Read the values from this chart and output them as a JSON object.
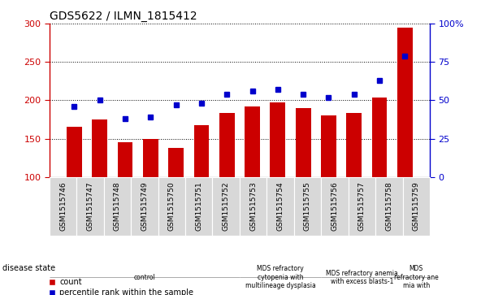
{
  "title": "GDS5622 / ILMN_1815412",
  "samples": [
    "GSM1515746",
    "GSM1515747",
    "GSM1515748",
    "GSM1515749",
    "GSM1515750",
    "GSM1515751",
    "GSM1515752",
    "GSM1515753",
    "GSM1515754",
    "GSM1515755",
    "GSM1515756",
    "GSM1515757",
    "GSM1515758",
    "GSM1515759"
  ],
  "counts": [
    165,
    175,
    145,
    150,
    138,
    168,
    183,
    192,
    197,
    190,
    180,
    183,
    204,
    295
  ],
  "percentile_ranks": [
    46,
    50,
    38,
    39,
    47,
    48,
    54,
    56,
    57,
    54,
    52,
    54,
    63,
    79
  ],
  "ylim_left": [
    100,
    300
  ],
  "ylim_right": [
    0,
    100
  ],
  "yticks_left": [
    100,
    150,
    200,
    250,
    300
  ],
  "yticks_right": [
    0,
    25,
    50,
    75,
    100
  ],
  "bar_color": "#cc0000",
  "dot_color": "#0000cc",
  "disease_groups": [
    {
      "label": "control",
      "start": 0,
      "end": 6,
      "color": "#ccffcc"
    },
    {
      "label": "MDS refractory\ncytopenia with\nmultilineage dysplasia",
      "start": 7,
      "end": 9,
      "color": "#ccffcc"
    },
    {
      "label": "MDS refractory anemia\nwith excess blasts-1",
      "start": 10,
      "end": 12,
      "color": "#ccffcc"
    },
    {
      "label": "MDS\nrefractory ane\nmia with",
      "start": 13,
      "end": 13,
      "color": "#ccffcc"
    }
  ],
  "legend_count_label": "count",
  "legend_pct_label": "percentile rank within the sample",
  "disease_state_label": "disease state"
}
